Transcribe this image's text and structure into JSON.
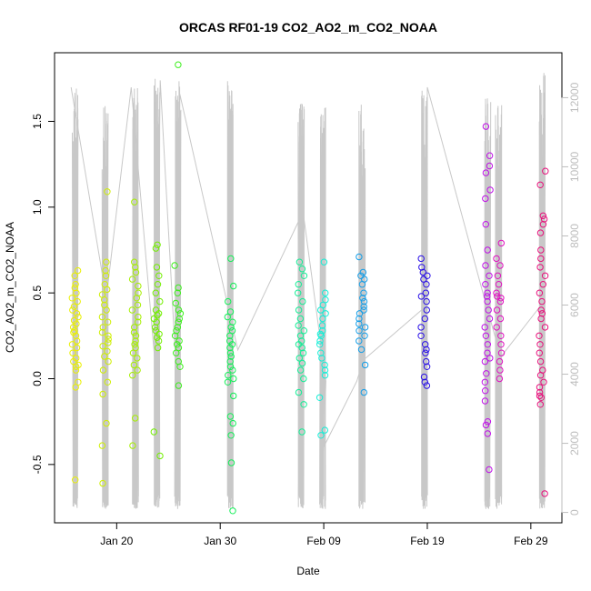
{
  "chart_data": {
    "type": "scatter",
    "title": "ORCAS RF01-19 CO2_AO2_m_CO2_NOAA",
    "xlabel": "Date",
    "ylabel": "CO2_AO2_m_CO2_NOAA",
    "xlim": [
      "2016-01-14",
      "2016-03-03"
    ],
    "ylim": [
      -0.84,
      1.9
    ],
    "y2lim": [
      -300,
      13300
    ],
    "x_ticks": [
      {
        "value": "2016-01-20",
        "label": "Jan 20"
      },
      {
        "value": "2016-01-30",
        "label": "Jan 30"
      },
      {
        "value": "2016-02-09",
        "label": "Feb 09"
      },
      {
        "value": "2016-02-19",
        "label": "Feb 19"
      },
      {
        "value": "2016-02-29",
        "label": "Feb 29"
      }
    ],
    "y_ticks": [
      -0.5,
      0.0,
      0.5,
      1.0,
      1.5
    ],
    "y_tick_labels": [
      "-0.5",
      "0.0",
      "0.5",
      "1.0",
      "1.5"
    ],
    "y2_ticks": [
      0,
      2000,
      4000,
      6000,
      8000,
      10000,
      12000
    ],
    "y2_tick_labels": [
      "0",
      "2000",
      "4000",
      "6000",
      "8000",
      "10000",
      "12000"
    ],
    "grid": false,
    "legend": "none",
    "altitude_color": "#c8c8c8",
    "flights": [
      {
        "center": "2016-01-16.0",
        "color": "#eaf000",
        "altMax": 12300,
        "values": [
          -0.59,
          -0.05,
          -0.02,
          0.05,
          0.07,
          0.08,
          0.1,
          0.12,
          0.15,
          0.18,
          0.2,
          0.22,
          0.25,
          0.27,
          0.28,
          0.3,
          0.32,
          0.34,
          0.36,
          0.38,
          0.4,
          0.42,
          0.45,
          0.47,
          0.5,
          0.53,
          0.55,
          0.6,
          0.63
        ]
      },
      {
        "center": "2016-01-18.9",
        "color": "#cfef00",
        "altMax": 11900,
        "values": [
          -0.61,
          -0.39,
          -0.26,
          -0.09,
          -0.02,
          0.05,
          0.1,
          0.13,
          0.16,
          0.19,
          0.21,
          0.23,
          0.25,
          0.27,
          0.3,
          0.33,
          0.36,
          0.4,
          0.43,
          0.46,
          0.49,
          0.52,
          0.55,
          0.6,
          0.63,
          0.68,
          1.09
        ]
      },
      {
        "center": "2016-01-21.8",
        "color": "#a6ef00",
        "altMax": 12400,
        "values": [
          -0.39,
          -0.23,
          0.02,
          0.05,
          0.08,
          0.12,
          0.15,
          0.18,
          0.2,
          0.22,
          0.25,
          0.27,
          0.3,
          0.33,
          0.36,
          0.4,
          0.43,
          0.47,
          0.5,
          0.54,
          0.58,
          0.62,
          0.65,
          0.68,
          1.03
        ]
      },
      {
        "center": "2016-01-23.9",
        "color": "#73ef00",
        "altMax": 12700,
        "values": [
          -0.45,
          -0.31,
          0.18,
          0.22,
          0.24,
          0.26,
          0.28,
          0.3,
          0.33,
          0.35,
          0.37,
          0.38,
          0.4,
          0.45,
          0.5,
          0.55,
          0.6,
          0.65,
          0.76,
          0.78
        ]
      },
      {
        "center": "2016-01-25.9",
        "color": "#3cef1c",
        "altMax": 12500,
        "values": [
          -0.04,
          0.07,
          0.1,
          0.15,
          0.18,
          0.2,
          0.22,
          0.25,
          0.28,
          0.3,
          0.33,
          0.35,
          0.38,
          0.4,
          0.44,
          0.5,
          0.53,
          0.66,
          1.83
        ]
      },
      {
        "center": "2016-01-31.0",
        "color": "#14ee58",
        "altMax": 12600,
        "values": [
          -0.77,
          -0.49,
          -0.33,
          -0.26,
          -0.22,
          -0.1,
          -0.02,
          0.0,
          0.02,
          0.05,
          0.07,
          0.1,
          0.13,
          0.15,
          0.18,
          0.2,
          0.22,
          0.25,
          0.28,
          0.3,
          0.33,
          0.36,
          0.39,
          0.45,
          0.54,
          0.7
        ]
      },
      {
        "center": "2016-02-06.8",
        "color": "#14ee96",
        "altMax": 12000,
        "values": [
          -0.31,
          -0.15,
          -0.08,
          0.0,
          0.05,
          0.09,
          0.12,
          0.15,
          0.18,
          0.2,
          0.22,
          0.25,
          0.28,
          0.31,
          0.35,
          0.4,
          0.45,
          0.5,
          0.55,
          0.6,
          0.64,
          0.68
        ]
      },
      {
        "center": "2016-02-08.9",
        "color": "#14eed7",
        "altMax": 12000,
        "values": [
          -0.33,
          -0.3,
          -0.11,
          0.02,
          0.05,
          0.08,
          0.12,
          0.15,
          0.2,
          0.22,
          0.25,
          0.26,
          0.28,
          0.31,
          0.35,
          0.38,
          0.4,
          0.43,
          0.46,
          0.5,
          0.68
        ]
      },
      {
        "center": "2016-02-12.7",
        "color": "#149ee8",
        "altMax": 11800,
        "values": [
          -0.08,
          0.08,
          0.17,
          0.22,
          0.25,
          0.28,
          0.3,
          0.32,
          0.35,
          0.38,
          0.4,
          0.42,
          0.45,
          0.47,
          0.5,
          0.55,
          0.58,
          0.6,
          0.62,
          0.71
        ]
      },
      {
        "center": "2016-02-18.7",
        "color": "#2a10e8",
        "altMax": 12300,
        "values": [
          -0.04,
          -0.02,
          0.01,
          0.07,
          0.1,
          0.15,
          0.17,
          0.2,
          0.25,
          0.3,
          0.35,
          0.4,
          0.45,
          0.48,
          0.5,
          0.55,
          0.58,
          0.6,
          0.62,
          0.65,
          0.7
        ]
      },
      {
        "center": "2016-02-24.8",
        "color": "#c010e8",
        "altMax": 12000,
        "values": [
          -0.53,
          -0.32,
          -0.27,
          -0.25,
          -0.13,
          -0.07,
          -0.02,
          0.03,
          0.1,
          0.12,
          0.15,
          0.2,
          0.25,
          0.3,
          0.35,
          0.4,
          0.45,
          0.48,
          0.5,
          0.55,
          0.6,
          0.66,
          0.75,
          0.9,
          1.05,
          1.1,
          1.2,
          1.24,
          1.3,
          1.47
        ]
      },
      {
        "center": "2016-02-25.9",
        "color": "#e010c0",
        "altMax": 11900,
        "values": [
          0.0,
          0.05,
          0.1,
          0.15,
          0.2,
          0.25,
          0.3,
          0.35,
          0.4,
          0.45,
          0.47,
          0.48,
          0.5,
          0.55,
          0.6,
          0.66,
          0.7,
          0.79
        ]
      },
      {
        "center": "2016-03-01.1",
        "color": "#e8107c",
        "altMax": 12800,
        "values": [
          -0.67,
          -0.15,
          -0.11,
          -0.1,
          -0.08,
          -0.05,
          -0.02,
          0.02,
          0.05,
          0.1,
          0.15,
          0.2,
          0.25,
          0.3,
          0.35,
          0.38,
          0.4,
          0.45,
          0.5,
          0.55,
          0.6,
          0.65,
          0.7,
          0.75,
          0.85,
          0.9,
          0.93,
          0.95,
          1.13,
          1.21
        ]
      }
    ],
    "ferry_track": [
      {
        "x": "2016-01-15.6",
        "alt": 12300
      },
      {
        "x": "2016-01-19.0",
        "alt": 6200
      },
      {
        "x": "2016-01-21.4",
        "alt": 12300
      },
      {
        "x": "2016-01-23.8",
        "alt": 4000
      },
      {
        "x": "2016-01-24.2",
        "alt": 12500
      },
      {
        "x": "2016-01-25.8",
        "alt": 3800
      },
      {
        "x": "2016-01-26.1",
        "alt": 12100
      },
      {
        "x": "2016-01-31.7",
        "alt": 4700
      },
      {
        "x": "2016-02-07.0",
        "alt": 8700
      },
      {
        "x": "2016-02-09.2",
        "alt": 3800
      },
      {
        "x": "2016-02-09.0",
        "alt": 1900
      },
      {
        "x": "2016-02-12.2",
        "alt": 3800
      },
      {
        "x": "2016-02-12.8",
        "alt": 4400
      },
      {
        "x": "2016-02-19.0",
        "alt": 6000
      },
      {
        "x": "2016-02-19.0",
        "alt": 12300
      },
      {
        "x": "2016-02-24.6",
        "alt": 6100
      },
      {
        "x": "2016-02-26.1",
        "alt": 4500
      },
      {
        "x": "2016-03-01.0",
        "alt": 6000
      }
    ]
  }
}
